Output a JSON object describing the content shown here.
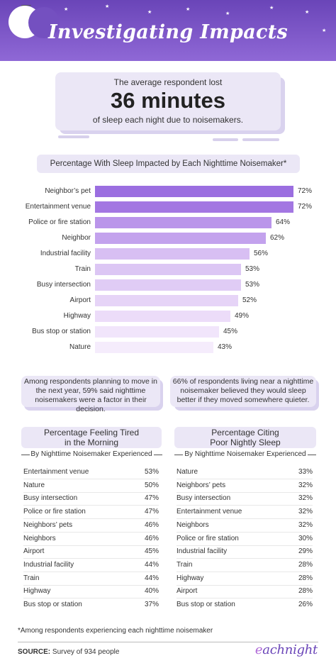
{
  "header": {
    "title": "Investigating Impacts"
  },
  "stat": {
    "line1": "The average respondent lost",
    "big": "36 minutes",
    "line2": "of sleep each night due to noisemakers."
  },
  "chart_data": {
    "type": "bar",
    "title": "Percentage With Sleep Impacted by Each Nighttime Noisemaker*",
    "categories": [
      "Neighbor’s pet",
      "Entertainment venue",
      "Police or fire station",
      "Neighbor",
      "Industrial facility",
      "Train",
      "Busy intersection",
      "Airport",
      "Highway",
      "Bus stop or station",
      "Nature"
    ],
    "values": [
      72,
      72,
      64,
      62,
      56,
      53,
      53,
      52,
      49,
      45,
      43
    ],
    "value_labels": [
      "72%",
      "72%",
      "64%",
      "62%",
      "56%",
      "53%",
      "53%",
      "52%",
      "49%",
      "45%",
      "43%"
    ],
    "xlim": [
      0,
      72
    ],
    "colors": [
      "#9b6ee0",
      "#a377e2",
      "#ba95ea",
      "#c3a2ed",
      "#d8bff3",
      "#dcc6f4",
      "#e0ccf5",
      "#e6d4f7",
      "#ecdcf9",
      "#f1e5fb",
      "#f5ecfc"
    ]
  },
  "callouts": {
    "left": "Among respondents planning to move in the next year, 59% said nighttime noisemakers were a factor in their decision.",
    "right": "66% of respondents living near a nighttime noisemaker believed they would sleep better if they moved somewhere quieter."
  },
  "tables": {
    "tired": {
      "title_line1": "Percentage Feeling Tired",
      "title_line2": "in the Morning",
      "subtitle": "By Nighttime Noisemaker Experienced",
      "rows": [
        {
          "name": "Entertainment venue",
          "value": "53%"
        },
        {
          "name": "Nature",
          "value": "50%"
        },
        {
          "name": "Busy intersection",
          "value": "47%"
        },
        {
          "name": "Police or fire station",
          "value": "47%"
        },
        {
          "name": "Neighbors’ pets",
          "value": "46%"
        },
        {
          "name": "Neighbors",
          "value": "46%"
        },
        {
          "name": "Airport",
          "value": "45%"
        },
        {
          "name": "Industrial facility",
          "value": "44%"
        },
        {
          "name": "Train",
          "value": "44%"
        },
        {
          "name": "Highway",
          "value": "40%"
        },
        {
          "name": "Bus stop or station",
          "value": "37%"
        }
      ]
    },
    "poor": {
      "title_line1": "Percentage Citing",
      "title_line2": "Poor Nightly Sleep",
      "subtitle": "By Nighttime Noisemaker Experienced",
      "rows": [
        {
          "name": "Nature",
          "value": "33%"
        },
        {
          "name": "Neighbors’ pets",
          "value": "32%"
        },
        {
          "name": "Busy intersection",
          "value": "32%"
        },
        {
          "name": "Entertainment venue",
          "value": "32%"
        },
        {
          "name": "Neighbors",
          "value": "32%"
        },
        {
          "name": "Police or fire station",
          "value": "30%"
        },
        {
          "name": "Industrial facility",
          "value": "29%"
        },
        {
          "name": "Train",
          "value": "28%"
        },
        {
          "name": "Highway",
          "value": "28%"
        },
        {
          "name": "Airport",
          "value": "28%"
        },
        {
          "name": "Bus stop or station",
          "value": "26%"
        }
      ]
    }
  },
  "footer": {
    "footnote": "*Among respondents experiencing each nighttime noisemaker",
    "source_label": "SOURCE:",
    "source_text": " Survey of 934 people",
    "logo_first": "e",
    "logo_rest": "achnight"
  }
}
